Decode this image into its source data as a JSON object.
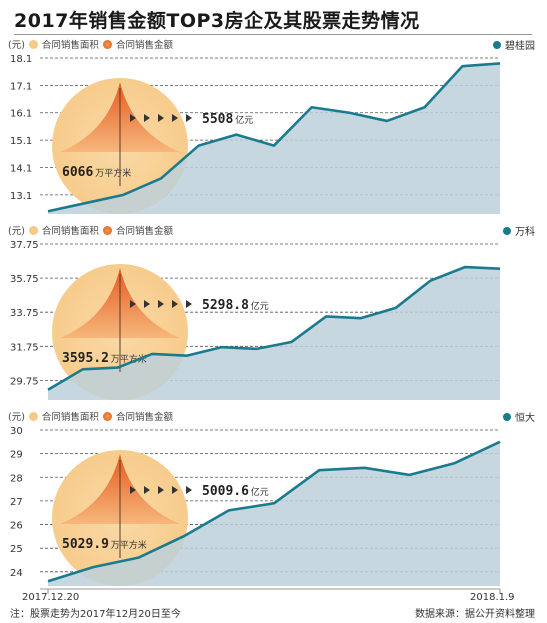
{
  "title": "2017年销售金额TOP3房企及其股票走势情况",
  "legend": {
    "unit": "(元)",
    "area_label": "合同销售面积",
    "amount_label": "合同销售金额"
  },
  "colors": {
    "line": "#1b7b8e",
    "fill": "#bdd0da",
    "circle": "#f7cc8c",
    "spike": "#ea6a2a"
  },
  "x_start_label": "2017.12.20",
  "x_end_label": "2018.1.9",
  "footer": {
    "note": "注：股票走势为2017年12月20日至今",
    "source": "数据来源：据公开资料整理"
  },
  "chart_data": [
    {
      "type": "area",
      "company": "碧桂园",
      "ylabel": "(元)",
      "yticks": [
        "18.1",
        "17.1",
        "16.1",
        "15.1",
        "14.1",
        "13.1"
      ],
      "ylim": [
        12.4,
        18.1
      ],
      "values": [
        12.5,
        12.8,
        13.1,
        13.7,
        14.9,
        15.3,
        14.9,
        16.3,
        16.1,
        15.8,
        16.3,
        17.8,
        17.9
      ],
      "sales_amount": "5508",
      "sales_amount_unit": "亿元",
      "sales_area": "6066",
      "sales_area_unit": "万平方米"
    },
    {
      "type": "area",
      "company": "万科",
      "ylabel": "(元)",
      "yticks": [
        "37.75",
        "35.75",
        "33.75",
        "31.75",
        "29.75"
      ],
      "ylim": [
        28.6,
        37.75
      ],
      "values": [
        29.2,
        30.4,
        30.5,
        31.3,
        31.2,
        31.7,
        31.6,
        32.0,
        33.5,
        33.4,
        34.0,
        35.6,
        36.4,
        36.3
      ],
      "sales_amount": "5298.8",
      "sales_amount_unit": "亿元",
      "sales_area": "3595.2",
      "sales_area_unit": "万平方米"
    },
    {
      "type": "area",
      "company": "恒大",
      "ylabel": "(元)",
      "yticks": [
        "30",
        "29",
        "28",
        "27",
        "26",
        "25",
        "24"
      ],
      "ylim": [
        23.4,
        30
      ],
      "values": [
        23.6,
        24.2,
        24.6,
        25.5,
        26.6,
        26.9,
        28.3,
        28.4,
        28.1,
        28.6,
        29.5
      ],
      "sales_amount": "5009.6",
      "sales_amount_unit": "亿元",
      "sales_area": "5029.9",
      "sales_area_unit": "万平方米"
    }
  ]
}
